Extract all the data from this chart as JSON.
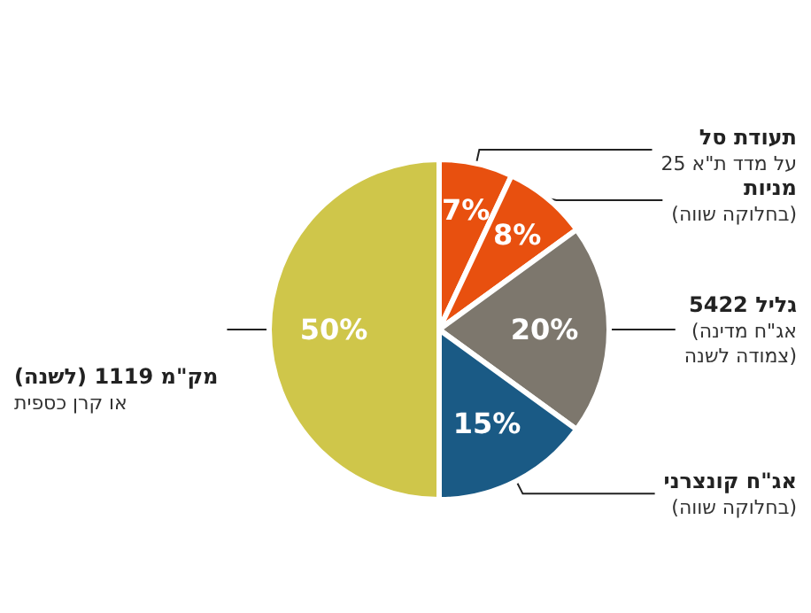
{
  "chart_data": {
    "type": "pie",
    "categories": [
      "תעודת סל\nעל מדד ת\"א 25",
      "מניות\n(בחלוקה שווה)",
      "גליל 5422\n(אג\"ח מדינה\nצמודה לשנה)",
      "אג\"ח קונצרני\n(בחלוקה שווה)",
      "מק\"מ 1119 (לשנה)\nאו קרן כספית"
    ],
    "values": [
      7,
      8,
      20,
      15,
      50
    ],
    "colors": [
      "#e8500f",
      "#e8500f",
      "#7d776d",
      "#1a5a85",
      "#cfc64a"
    ],
    "value_labels": [
      "7%",
      "8%",
      "20%",
      "15%",
      "50%"
    ],
    "legend": false
  }
}
